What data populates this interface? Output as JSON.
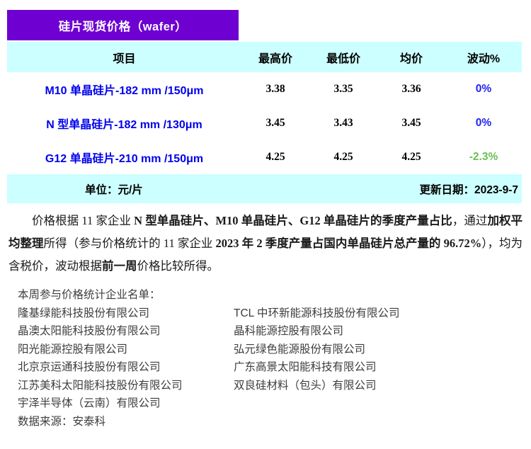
{
  "table": {
    "title": "硅片现货价格（wafer）",
    "columns": [
      "项目",
      "最高价",
      "最低价",
      "均价",
      "波动%"
    ],
    "rows": [
      {
        "item": "M10 单晶硅片-182 mm /150μm",
        "high": "3.38",
        "low": "3.35",
        "avg": "3.36",
        "change": "0%"
      },
      {
        "item": "N 型单晶硅片-182 mm /130μm",
        "high": "3.45",
        "low": "3.43",
        "avg": "3.45",
        "change": "0%"
      },
      {
        "item": "G12 单晶硅片-210 mm /150μm",
        "high": "4.25",
        "low": "4.25",
        "avg": "4.25",
        "change": "-2.3%"
      }
    ],
    "unit_label": "单位：元/片",
    "update_label": "更新日期：2023-9-7"
  },
  "note": {
    "segments": [
      {
        "t": "价格根据 11 家企业 "
      },
      {
        "t": "N 型单晶硅片、M10 单晶硅片、G12 单晶硅片的季度产量占比"
      },
      {
        "t": "，通过"
      },
      {
        "t": "加权平均整理"
      },
      {
        "t": "所得（参与价格统计的 11 家企业 "
      },
      {
        "t": "2023 年 2 季度产量占国内单晶硅片总产量的 96.72%"
      },
      {
        "t": "），均为含税价，波动根据"
      },
      {
        "t": "前一周"
      },
      {
        "t": "价格比较所得。"
      }
    ]
  },
  "companies": {
    "heading": "本周参与价格统计企业名单：",
    "rows": [
      {
        "left": "隆基绿能科技股份有限公司",
        "right": "TCL 中环新能源科技股份有限公司"
      },
      {
        "left": "晶澳太阳能科技股份有限公司",
        "right": "晶科能源控股有限公司"
      },
      {
        "left": "阳光能源控股有限公司",
        "right": "弘元绿色能源股份有限公司"
      },
      {
        "left": "北京京运通科技股份有限公司",
        "right": "广东高景太阳能科技有限公司"
      },
      {
        "left": "江苏美科太阳能科技股份有限公司",
        "right": "双良硅材料（包头）有限公司"
      },
      {
        "left": "宇泽半导体（云南）有限公司",
        "right": ""
      }
    ],
    "source": "数据来源：安泰科"
  },
  "colors": {
    "title_bg": "#6E00D2",
    "band_bg": "#CCFFFF",
    "item_text": "#0000EE",
    "change_flat": "#2222EE",
    "change_down": "#6ABF54"
  }
}
